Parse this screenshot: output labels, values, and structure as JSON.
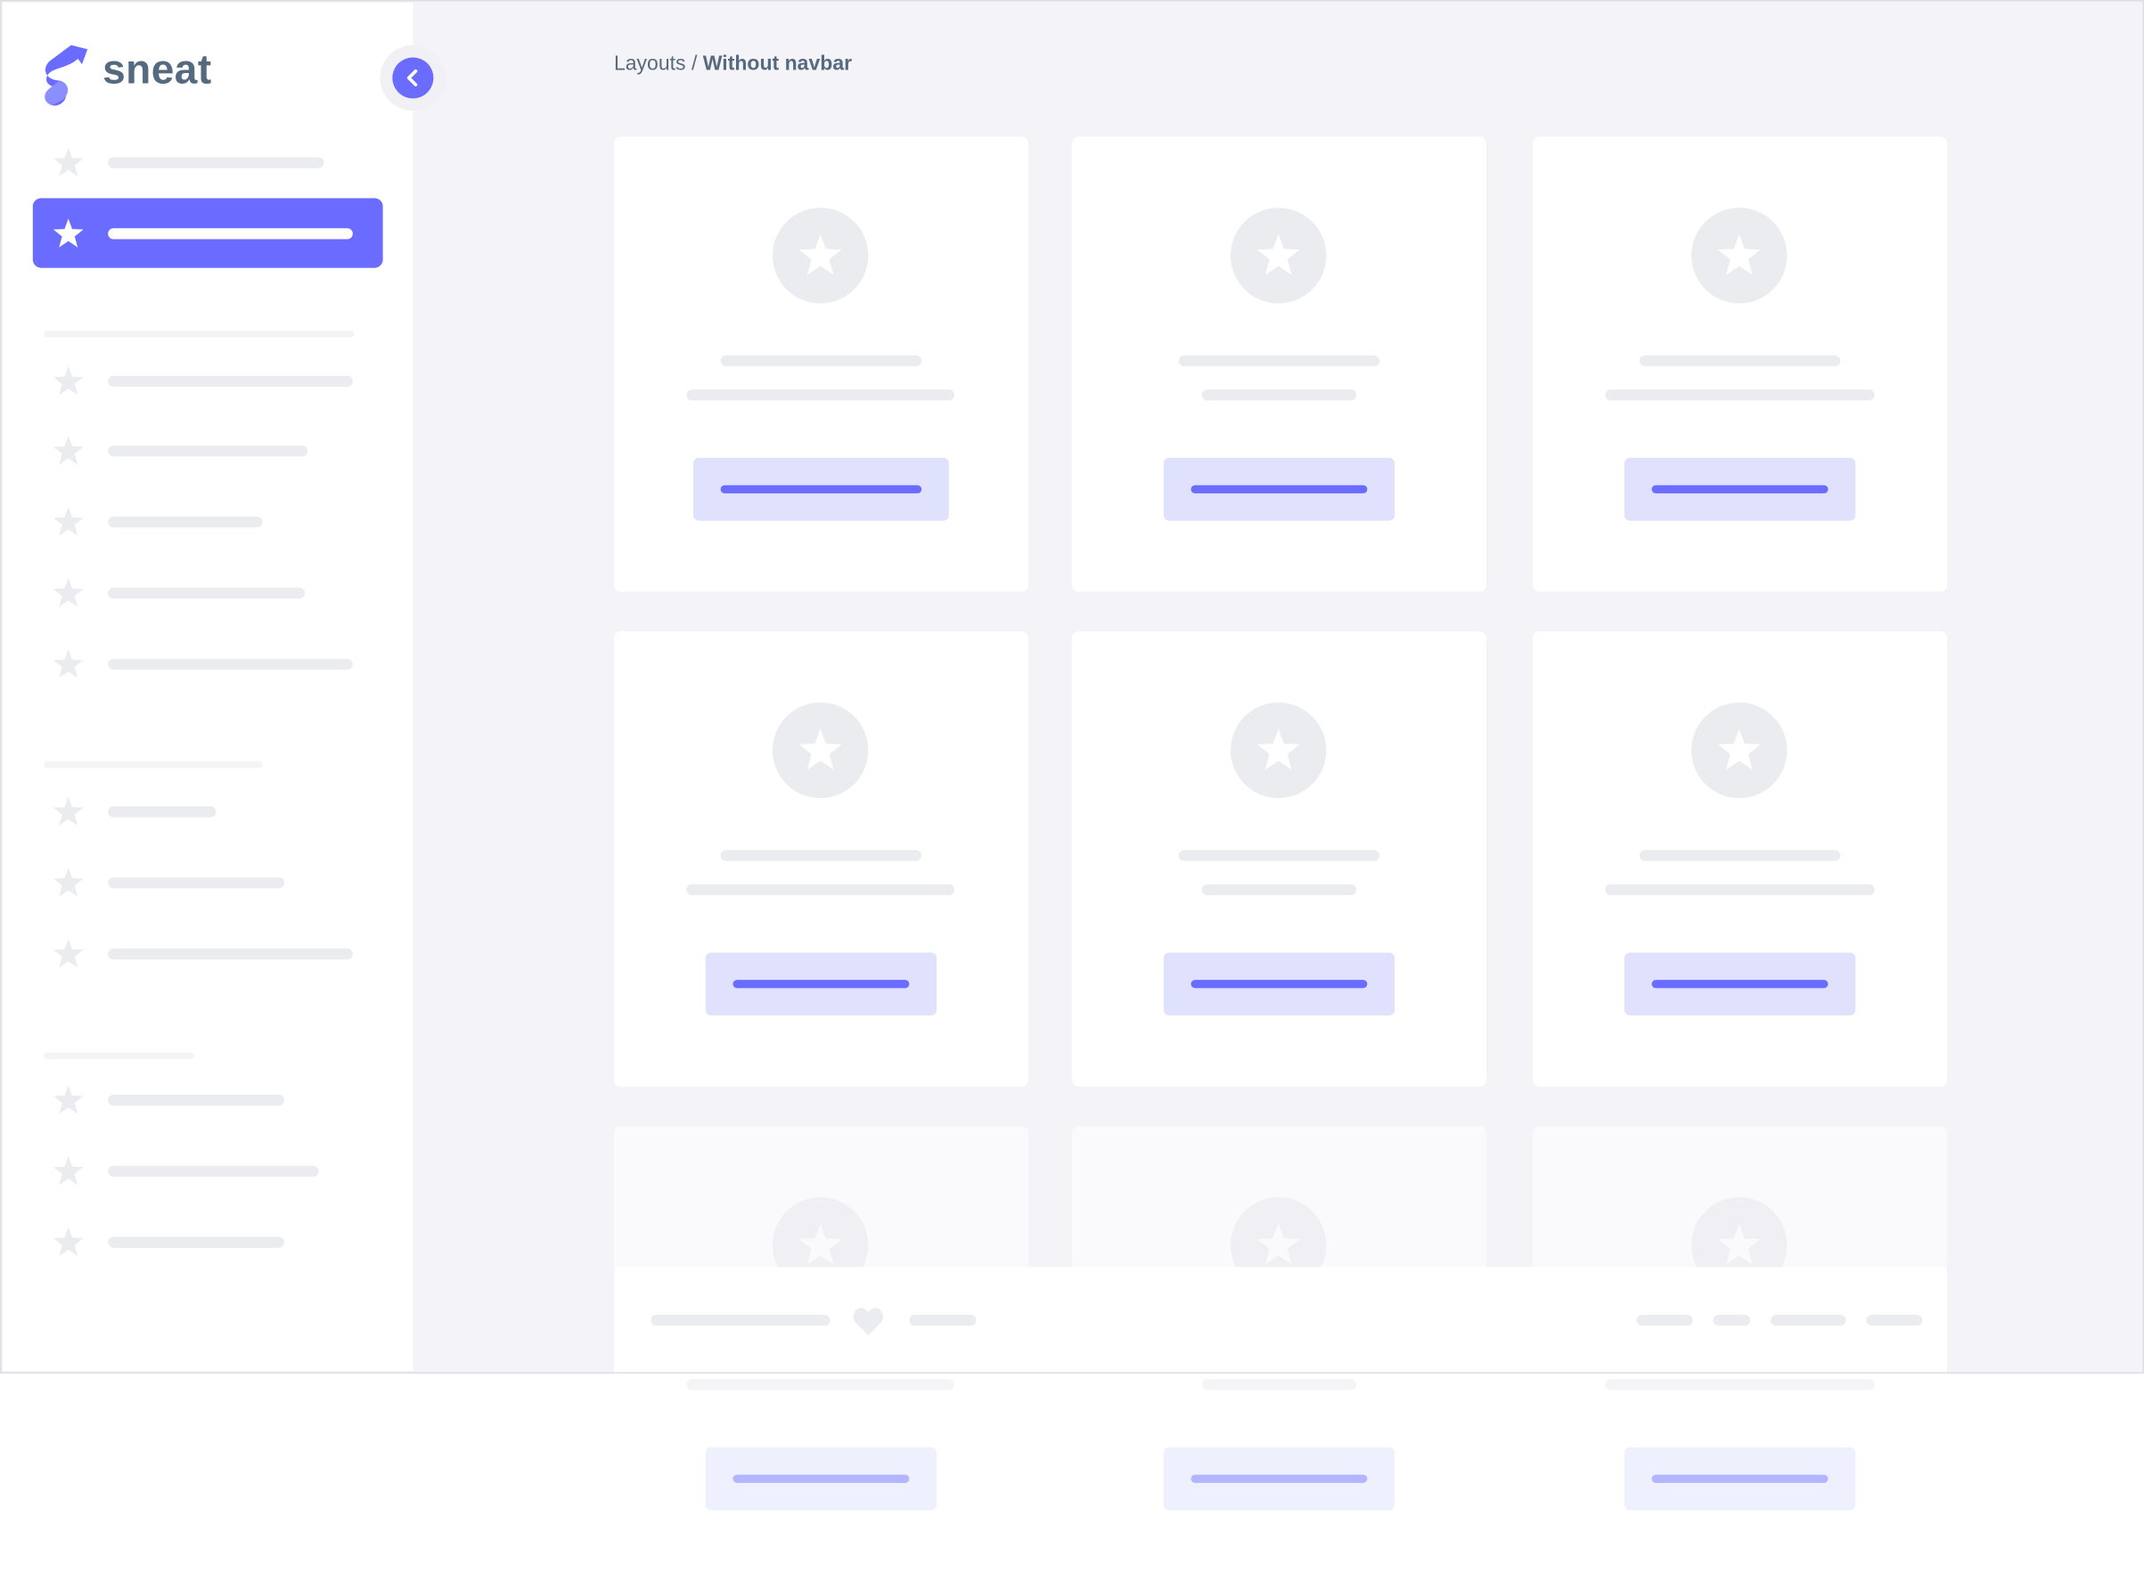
{
  "brand": {
    "name": "sneat",
    "accent": "#696cff",
    "text_color": "#566a7f"
  },
  "breadcrumb": {
    "parent": "Layouts",
    "separator": " / ",
    "current": "Without navbar"
  },
  "sidebar": {
    "active_index": 1,
    "toggle_icon": "chevron-left-icon"
  },
  "colors": {
    "background": "#f4f4f8",
    "skeleton": "#ebecef",
    "button_bg": "#e0e1fd"
  }
}
